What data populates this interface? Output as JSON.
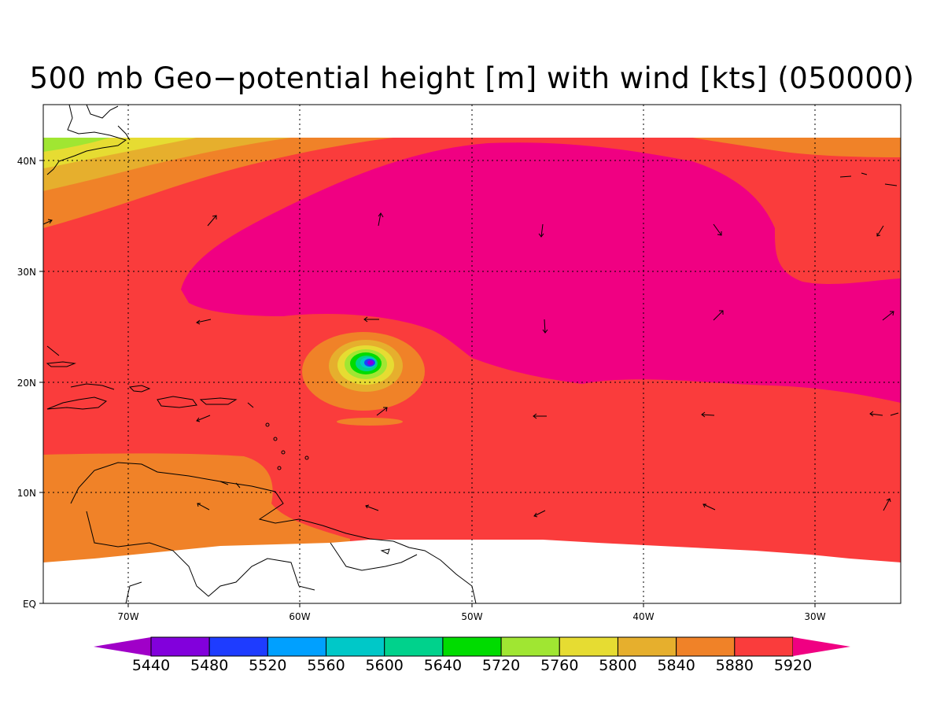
{
  "title": "500 mb Geo−potential height [m] with wind [kts] (050000)",
  "axes": {
    "x_ticks": [
      "70W",
      "60W",
      "50W",
      "40W",
      "30W"
    ],
    "y_ticks": [
      "EQ",
      "10N",
      "20N",
      "30N",
      "40N"
    ]
  },
  "colorbar": {
    "labels": [
      "5440",
      "5480",
      "5520",
      "5560",
      "5600",
      "5640",
      "5720",
      "5760",
      "5800",
      "5840",
      "5880",
      "5920"
    ],
    "colors": [
      "#a000c8",
      "#8200dc",
      "#1e3cff",
      "#00a0ff",
      "#00c8c8",
      "#00d28c",
      "#00dc00",
      "#a0e632",
      "#e6dc32",
      "#e6af2d",
      "#f08228",
      "#fa3c3c",
      "#f00082"
    ]
  },
  "chart_data": {
    "type": "heatmap",
    "variable": "500 mb Geo-potential height [m]",
    "overlay": "wind vectors [kts]",
    "lon_range": [
      -75,
      -25
    ],
    "lat_range": [
      0,
      45
    ],
    "data_lat_range": [
      4,
      42
    ],
    "levels": [
      5440,
      5480,
      5520,
      5560,
      5600,
      5640,
      5720,
      5760,
      5800,
      5840,
      5880,
      5920
    ],
    "features": [
      {
        "kind": "low_center",
        "lon": -56,
        "lat": 21.5,
        "min_level": 5480
      },
      {
        "kind": "ridge_max",
        "region": "central subtropical Atlantic",
        "level": 5920
      }
    ]
  }
}
